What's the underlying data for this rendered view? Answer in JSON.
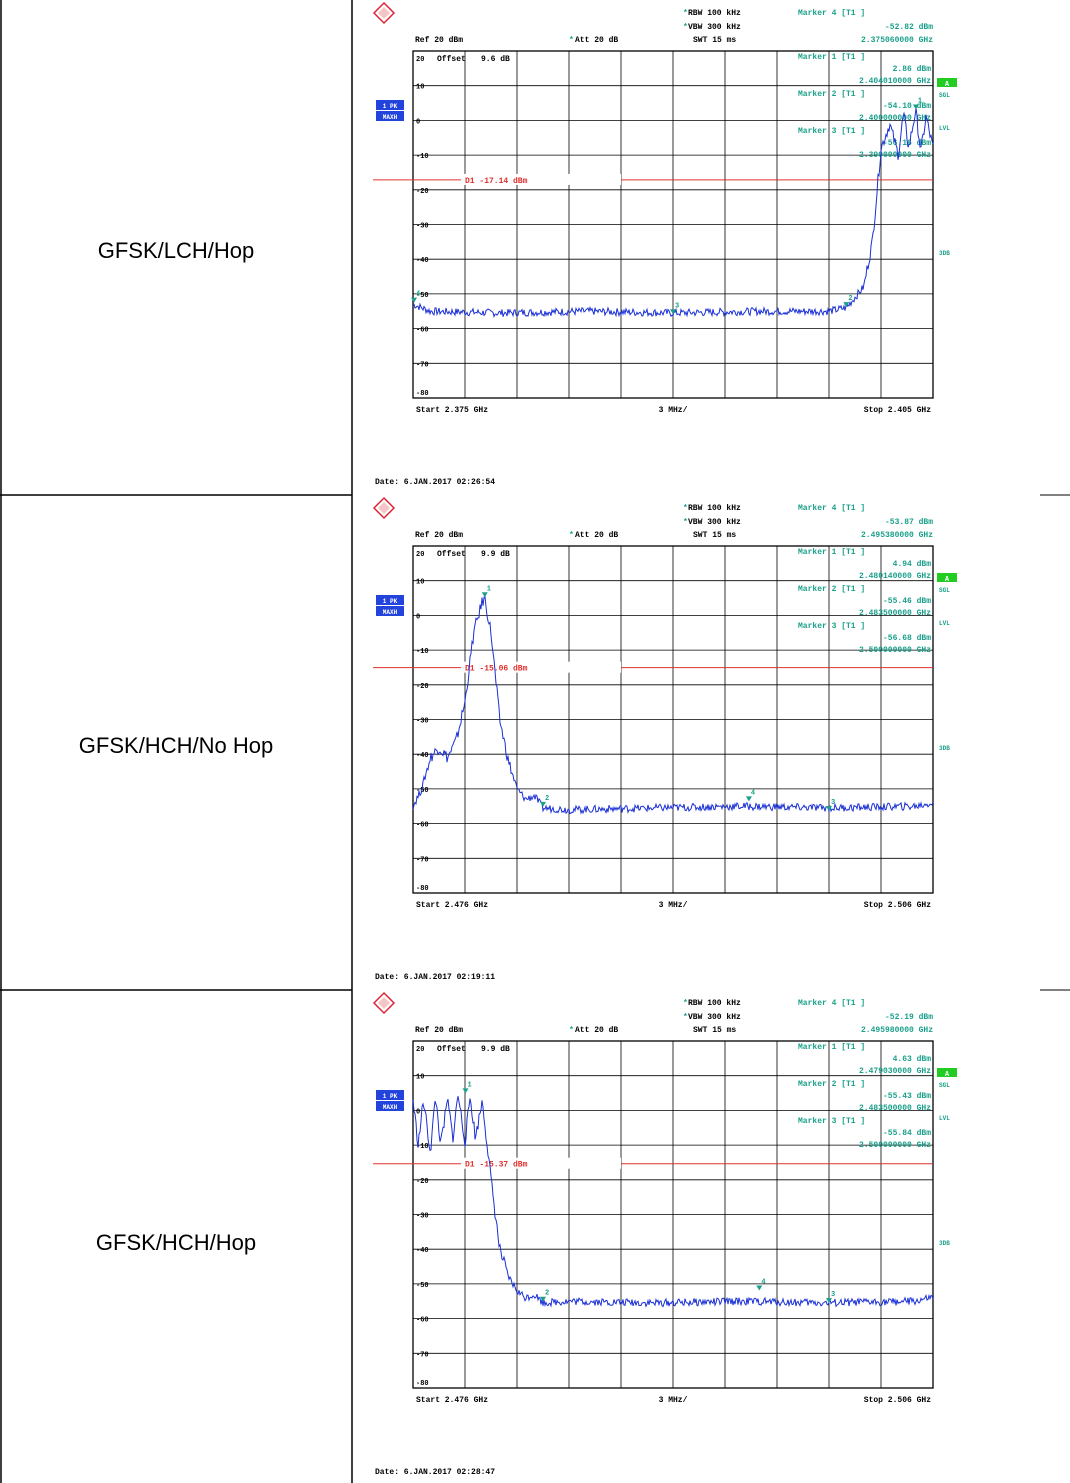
{
  "colors": {
    "trace": "#1a2fd6",
    "display_line": "#e0302c",
    "info": "#1aa08a",
    "header": "#000000",
    "grid": "#000000",
    "badge_blue": "#2244dd",
    "badge_green": "#22cc22"
  },
  "instrument": {
    "rbw": "RBW 100 kHz",
    "vbw": "VBW 300 kHz",
    "swt": "SWT 15 ms",
    "ref": "Ref  20 dBm",
    "att": "Att  20 dB",
    "offset_label": "Offset",
    "trace_badge_top": "1 PK",
    "trace_badge_bottom": "MAXH",
    "sgl": "SGL",
    "lvl": "LVL",
    "a": "A",
    "three_db": "3DB",
    "span_per_div": "3 MHz/",
    "y_ticks": [
      "20",
      "10",
      "0",
      "-10",
      "-20",
      "-30",
      "-40",
      "-50",
      "-60",
      "-70",
      "-80"
    ]
  },
  "rows": [
    {
      "label": "GFSK/LCH/Hop",
      "offset": "9.6 dB",
      "start": "Start  2.375 GHz",
      "stop": "Stop  2.405 GHz",
      "date": "Date: 6.JAN.2017  02:26:54",
      "display_line": "D1 -17.14 dBm",
      "markers": [
        {
          "title": "Marker 4 [T1 ]",
          "level": "-52.82 dBm",
          "freq": "2.375060000 GHz"
        },
        {
          "title": "Marker 1 [T1 ]",
          "level": "2.86 dBm",
          "freq": "2.404010000 GHz"
        },
        {
          "title": "Marker 2 [T1 ]",
          "level": "-54.10 dBm",
          "freq": "2.400000000 GHz"
        },
        {
          "title": "Marker 3 [T1 ]",
          "level": "-56.16 dBm",
          "freq": "2.390000000 GHz"
        }
      ],
      "chart_data": {
        "type": "line",
        "title": "",
        "xlabel": "",
        "ylabel": "",
        "xlim": [
          2375,
          2405
        ],
        "ylim": [
          -80,
          20
        ],
        "display_line_dbm": -17.14,
        "series": [
          {
            "x": [
              2375,
              2376,
              2380,
              2385,
              2390,
              2395,
              2399,
              2400,
              2401,
              2401.5,
              2402,
              2402.5,
              2403,
              2403.3,
              2403.6,
              2404,
              2404.3,
              2404.6,
              2405
            ],
            "y": [
              -53,
              -55,
              -55.5,
              -55,
              -55.5,
              -55,
              -55,
              -54,
              -48,
              -35,
              -8,
              -1,
              -10,
              2,
              -8,
              2.9,
              -9,
              1,
              -8
            ]
          }
        ],
        "marker_points": [
          {
            "id": "4",
            "x": 2375.06,
            "y": -52.82
          },
          {
            "id": "1",
            "x": 2404.01,
            "y": 2.86
          },
          {
            "id": "2",
            "x": 2400,
            "y": -54.1
          },
          {
            "id": "3",
            "x": 2390,
            "y": -56.16
          }
        ]
      }
    },
    {
      "label": "GFSK/HCH/No Hop",
      "offset": "9.9 dB",
      "start": "Start  2.476 GHz",
      "stop": "Stop  2.506 GHz",
      "date": "Date: 6.JAN.2017  02:19:11",
      "display_line": "D1 -15.06 dBm",
      "markers": [
        {
          "title": "Marker 4 [T1 ]",
          "level": "-53.87 dBm",
          "freq": "2.495380000 GHz"
        },
        {
          "title": "Marker 1 [T1 ]",
          "level": "4.94 dBm",
          "freq": "2.480140000 GHz"
        },
        {
          "title": "Marker 2 [T1 ]",
          "level": "-55.46 dBm",
          "freq": "2.483500000 GHz"
        },
        {
          "title": "Marker 3 [T1 ]",
          "level": "-56.68 dBm",
          "freq": "2.500000000 GHz"
        }
      ],
      "chart_data": {
        "type": "line",
        "title": "",
        "xlabel": "",
        "ylabel": "",
        "xlim": [
          2476,
          2506
        ],
        "ylim": [
          -80,
          20
        ],
        "display_line_dbm": -15.06,
        "series": [
          {
            "x": [
              2476,
              2476.5,
              2477,
              2477.5,
              2478,
              2478.5,
              2479,
              2479.5,
              2480,
              2480.14,
              2480.5,
              2481,
              2481.5,
              2482,
              2482.5,
              2483,
              2483.5,
              2485,
              2490,
              2495,
              2500,
              2505,
              2506
            ],
            "y": [
              -55,
              -50,
              -41,
              -38,
              -41,
              -36,
              -25,
              -5,
              4,
              4.9,
              -5,
              -30,
              -42,
              -50,
              -53,
              -52,
              -55.5,
              -56,
              -55.5,
              -55,
              -55.5,
              -55,
              -54
            ]
          }
        ],
        "marker_points": [
          {
            "id": "4",
            "x": 2495.38,
            "y": -53.87
          },
          {
            "id": "1",
            "x": 2480.14,
            "y": 4.94
          },
          {
            "id": "2",
            "x": 2483.5,
            "y": -55.46
          },
          {
            "id": "3",
            "x": 2500,
            "y": -56.68
          }
        ]
      }
    },
    {
      "label": "GFSK/HCH/Hop",
      "offset": "9.9 dB",
      "start": "Start  2.476 GHz",
      "stop": "Stop  2.506 GHz",
      "date": "Date: 6.JAN.2017  02:28:47",
      "display_line": "D1 -15.37 dBm",
      "markers": [
        {
          "title": "Marker 4 [T1 ]",
          "level": "-52.19 dBm",
          "freq": "2.495980000 GHz"
        },
        {
          "title": "Marker 1 [T1 ]",
          "level": "4.63 dBm",
          "freq": "2.479030000 GHz"
        },
        {
          "title": "Marker 2 [T1 ]",
          "level": "-55.43 dBm",
          "freq": "2.483500000 GHz"
        },
        {
          "title": "Marker 3 [T1 ]",
          "level": "-55.84 dBm",
          "freq": "2.500000000 GHz"
        }
      ],
      "chart_data": {
        "type": "line",
        "title": "",
        "xlabel": "",
        "ylabel": "",
        "xlim": [
          2476,
          2506
        ],
        "ylim": [
          -80,
          20
        ],
        "display_line_dbm": -15.37,
        "series": [
          {
            "x": [
              2476,
              2476.3,
              2476.6,
              2477,
              2477.3,
              2477.6,
              2478,
              2478.3,
              2478.6,
              2479,
              2479.3,
              2479.6,
              2480,
              2480.5,
              2481,
              2481.5,
              2482,
              2482.5,
              2483,
              2483.5,
              2485,
              2490,
              2495,
              2500,
              2505,
              2506
            ],
            "y": [
              3,
              -10,
              3,
              -12,
              4,
              -10,
              3,
              -8,
              4.6,
              -9,
              4,
              -8,
              3,
              -20,
              -40,
              -48,
              -52,
              -54,
              -53,
              -55.4,
              -55,
              -55.5,
              -55,
              -55.5,
              -55,
              -54
            ]
          }
        ],
        "marker_points": [
          {
            "id": "4",
            "x": 2495.98,
            "y": -52.19
          },
          {
            "id": "1",
            "x": 2479.03,
            "y": 4.63
          },
          {
            "id": "2",
            "x": 2483.5,
            "y": -55.43
          },
          {
            "id": "3",
            "x": 2500,
            "y": -55.84
          }
        ]
      }
    }
  ]
}
